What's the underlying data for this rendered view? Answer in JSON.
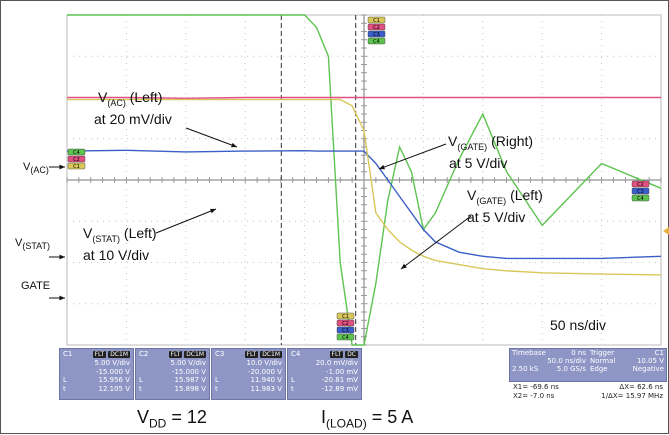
{
  "chart_data": {
    "type": "line",
    "time_per_div": "50 ns/div",
    "x": [
      -250,
      -200,
      -150,
      -100,
      -50,
      -40,
      -30,
      -20,
      -10,
      0,
      10,
      20,
      30,
      40,
      50,
      60,
      80,
      100,
      120,
      150,
      200,
      250
    ],
    "series": [
      {
        "channel": "C4",
        "color": "#5ec450",
        "values": [
          4.0,
          4.05,
          4.05,
          4.1,
          4.08,
          3.7,
          3.0,
          -2.0,
          -4.8,
          -4.8,
          -2.5,
          -0.5,
          0.8,
          0.2,
          -1.2,
          -0.8,
          0.5,
          1.6,
          0.2,
          -1.1,
          0.4,
          -0.2
        ]
      },
      {
        "channel": "C2",
        "color": "#e05080",
        "values": [
          2.0,
          2.0,
          1.98,
          2.0,
          2.0,
          2.0,
          2.0,
          2.0,
          2.0,
          2.0,
          2.0,
          2.0,
          2.0,
          2.0,
          2.0,
          2.0,
          2.0,
          2.0,
          2.0,
          2.0,
          2.0,
          2.0
        ]
      },
      {
        "channel": "C3",
        "color": "#3a5fc8",
        "values": [
          0.7,
          0.72,
          0.68,
          0.7,
          0.71,
          0.7,
          0.7,
          0.7,
          0.7,
          0.7,
          0.4,
          0.0,
          -0.4,
          -0.8,
          -1.2,
          -1.5,
          -1.75,
          -1.85,
          -1.9,
          -1.9,
          -1.9,
          -1.85
        ]
      },
      {
        "channel": "C1",
        "color": "#d9c75a",
        "values": [
          1.95,
          1.95,
          1.95,
          1.95,
          1.95,
          1.95,
          1.95,
          1.95,
          1.8,
          1.2,
          -0.8,
          -1.2,
          -1.5,
          -1.7,
          -1.85,
          -1.95,
          -2.05,
          -2.15,
          -2.2,
          -2.25,
          -2.28,
          -2.3
        ]
      }
    ],
    "cursors_ns": [
      -69.6,
      -7.0
    ],
    "xlim": [
      -250,
      250
    ],
    "ylim": [
      -4,
      4
    ],
    "grid": true
  },
  "annotations": {
    "vac_left": [
      "V",
      "(AC)",
      " (Left)"
    ],
    "vac_left_scale": "at 20 mV/div",
    "vgate_right": [
      "V",
      "(GATE)",
      " (Right)"
    ],
    "vgate_right_scale": "at 5 V/div",
    "vgate_left": [
      "V",
      "(GATE)",
      " (Left)"
    ],
    "vgate_left_scale": "at 5 V/div",
    "vstat_left": [
      "V",
      "(STAT)",
      " (Left)"
    ],
    "vstat_left_scale": "at 10 V/div",
    "side_vac": [
      "V",
      "(AC)"
    ],
    "side_vstat": [
      "V",
      "(STAT)"
    ],
    "side_gate": "GATE",
    "timebase_label": "50 ns/div",
    "vdd": [
      "V",
      "DD",
      " = 12"
    ],
    "iload": [
      "I",
      "(LOAD)",
      " = 5 A"
    ]
  },
  "scope_labels": {
    "trace_tags": [
      "C4",
      "C2",
      "C1"
    ],
    "right_tags": [
      "C2",
      "C3",
      "C4"
    ],
    "top_tags": [
      "C1",
      "C2",
      "C3",
      "C4"
    ],
    "bottom_tags": [
      "C1",
      "C2",
      "C3",
      "C4"
    ]
  },
  "channels": [
    {
      "name": "C1",
      "tag1": "FLT",
      "tag2": "DC1M",
      "scale": "5.00 V/div",
      "offset": "-15.000 V",
      "r1k": "L",
      "r1": "15.956 V",
      "r2k": "t",
      "r2": "12.105 V"
    },
    {
      "name": "C2",
      "tag1": "FLT",
      "tag2": "DC1M",
      "scale": "5.00 V/div",
      "offset": "-15.000 V",
      "r1k": "L",
      "r1": "15.987 V",
      "r2k": "t",
      "r2": "15.898 V"
    },
    {
      "name": "C3",
      "tag1": "FLT",
      "tag2": "DC1M",
      "scale": "10.0 V/div",
      "offset": "-20.000 V",
      "r1k": "L",
      "r1": "11.940 V",
      "r2k": "t",
      "r2": "11.983 V"
    },
    {
      "name": "C4",
      "tag1": "FLT",
      "tag2": "DC",
      "scale": "20.0 mV/div",
      "offset": "-1.00 mV",
      "r1k": "L",
      "r1": "-20.81 mV",
      "r2k": "t",
      "r2": "-12.89 mV"
    }
  ],
  "timebase": {
    "label": "Timebase",
    "delay": "0 ns",
    "tdiv": "50.0 ns/div",
    "sr_pts": "2.50 kS",
    "sr": "5.0 GS/s"
  },
  "trigger": {
    "label": "Trigger",
    "ch": "C1",
    "mode": "Normal",
    "level": "10.05 V",
    "type": "Edge",
    "slope": "Negative"
  },
  "cursor_readout": {
    "x1": "X1=",
    "x1v": "-69.6 ns",
    "dx": "ΔX=",
    "dxv": "62.6 ns",
    "x2": "X2=",
    "x2v": "-7.0 ns",
    "idx": "1/ΔX=",
    "idxv": "15.97 MHz"
  },
  "colors": {
    "c1": "#d9c75a",
    "c2": "#e05080",
    "c3": "#3a5fc8",
    "c4": "#5ec450",
    "panel": "#8e96c6",
    "trigger_marker": "#e8b040"
  }
}
